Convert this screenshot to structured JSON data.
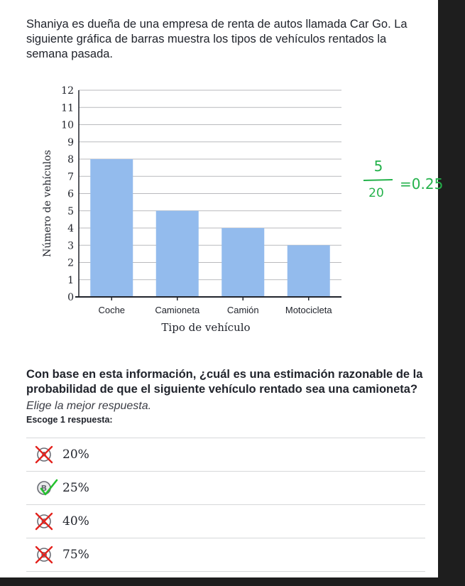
{
  "intro_text": "Shaniya es dueña de una empresa de renta de autos llamada Car Go. La siguiente gráfica de barras muestra los tipos de vehículos rentados la semana pasada.",
  "chart_data": {
    "type": "bar",
    "categories": [
      "Coche",
      "Camioneta",
      "Camión",
      "Motocicleta"
    ],
    "values": [
      8,
      5,
      4,
      3
    ],
    "xlabel": "Tipo de vehículo",
    "ylabel": "Número de vehículos",
    "ylim": [
      0,
      12
    ],
    "yticks": [
      0,
      1,
      2,
      3,
      4,
      5,
      6,
      7,
      8,
      9,
      10,
      11,
      12
    ],
    "grid": true,
    "bar_color": "#93bbed"
  },
  "handwritten_note": {
    "numerator": "5",
    "denominator": "20",
    "result": "=0.25",
    "color": "#24b24b"
  },
  "question": "Con base en esta información, ¿cuál es una estimación razonable de la probabilidad de que el siguiente vehículo rentado sea una camioneta?",
  "instruction": "Elige la mejor respuesta.",
  "choose_label": "Escoge 1 respuesta:",
  "choices": [
    {
      "letter": "A",
      "label": "20%",
      "mark": "crossed-out"
    },
    {
      "letter": "B",
      "label": "25%",
      "mark": "checked"
    },
    {
      "letter": "C",
      "label": "40%",
      "mark": "crossed-out"
    },
    {
      "letter": "D",
      "label": "75%",
      "mark": "crossed-out"
    }
  ],
  "colors": {
    "cross": "#e3221d",
    "check": "#24c22e",
    "text": "#21242c"
  }
}
